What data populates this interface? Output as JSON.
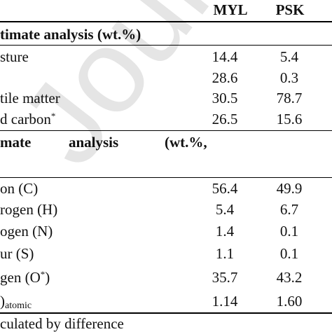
{
  "watermark": "Journal Pre-proof",
  "header": {
    "col1": "MYL",
    "col2": "PSK"
  },
  "proximate": {
    "heading": "timate analysis (wt.%)",
    "rows": [
      {
        "label": "sture",
        "myl": "14.4",
        "psk": "5.4"
      },
      {
        "label": "",
        "myl": "28.6",
        "psk": "0.3"
      },
      {
        "label": "tile matter",
        "myl": "30.5",
        "psk": "78.7"
      },
      {
        "label": "d carbon",
        "sup": "*",
        "myl": "26.5",
        "psk": "15.6"
      }
    ]
  },
  "ultimate": {
    "heading_parts": [
      "mate",
      "analysis",
      "(wt.%,"
    ],
    "rows": [
      {
        "label": "on (C)",
        "myl": "56.4",
        "psk": "49.9"
      },
      {
        "label": "rogen (H)",
        "myl": "5.4",
        "psk": "6.7"
      },
      {
        "label": "ogen (N)",
        "myl": "1.4",
        "psk": "0.1"
      },
      {
        "label": "ur (S)",
        "myl": "1.1",
        "psk": "0.1"
      },
      {
        "label": "gen (O",
        "sup": "*",
        "label_suffix": ")",
        "myl": "35.7",
        "psk": "43.2"
      },
      {
        "label": ")",
        "sub": "atomic",
        "myl": "1.14",
        "psk": "1.60"
      }
    ]
  },
  "footnote": "culated by difference"
}
